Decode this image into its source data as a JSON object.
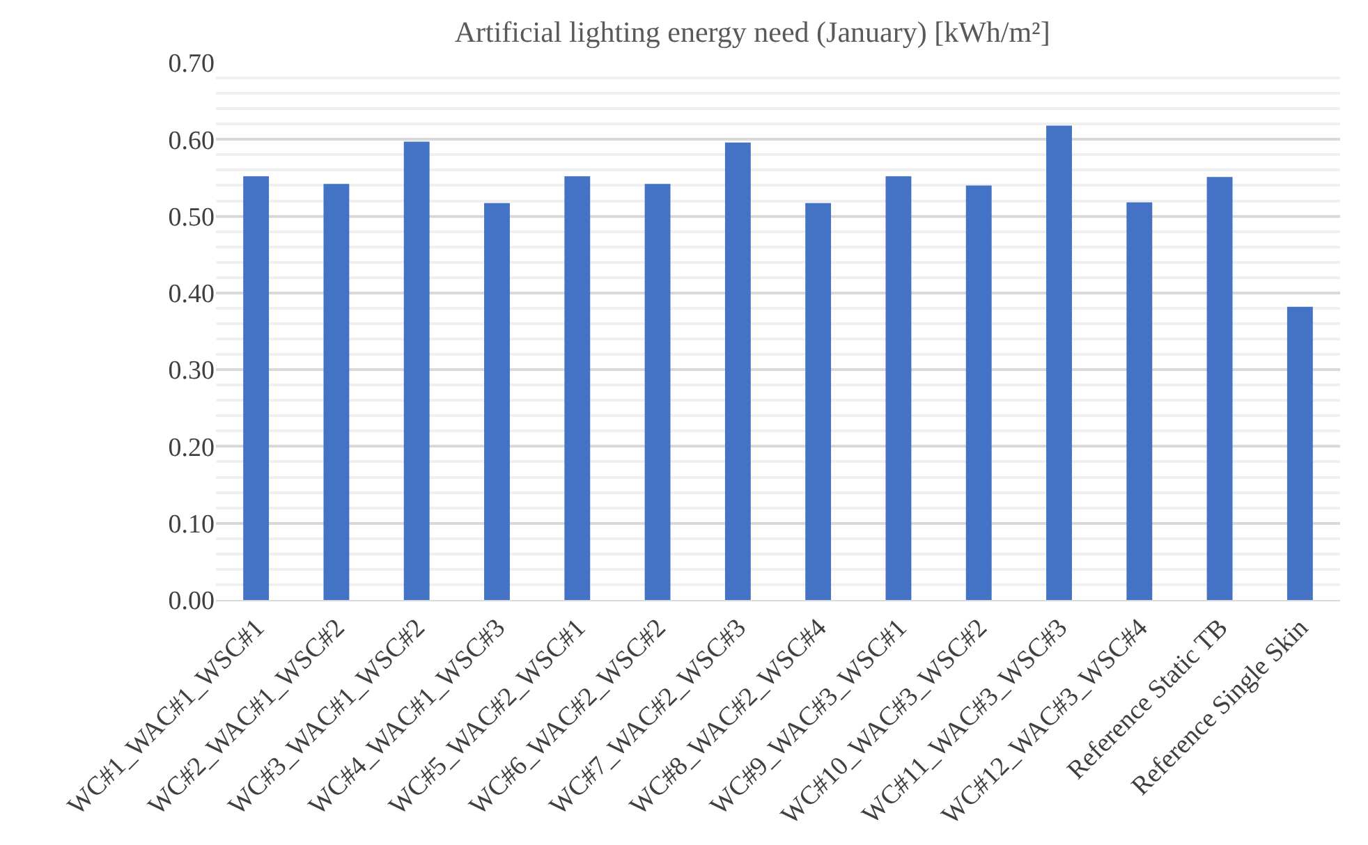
{
  "chart_data": {
    "type": "bar",
    "title": "Artificial lighting energy need (January) [kWh/m²]",
    "categories": [
      "WC#1_WAC#1_WSC#1",
      "WC#2_WAC#1_WSC#2",
      "WC#3_WAC#1_WSC#2",
      "WC#4_WAC#1_WSC#3",
      "WC#5_WAC#2_WSC#1",
      "WC#6_WAC#2_WSC#2",
      "WC#7_WAC#2_WSC#3",
      "WC#8_WAC#2_WSC#4",
      "WC#9_WAC#3_WSC#1",
      "WC#10_WAC#3_WSC#2",
      "WC#11_WAC#3_WSC#3",
      "WC#12_WAC#3_WSC#4",
      "Reference Static TB",
      "Reference Single Skin"
    ],
    "values": [
      0.552,
      0.542,
      0.597,
      0.517,
      0.552,
      0.542,
      0.596,
      0.517,
      0.552,
      0.54,
      0.618,
      0.518,
      0.551,
      0.382
    ],
    "color": "#4472c4",
    "ylim": [
      0,
      0.7
    ],
    "yticks": [
      {
        "value": 0,
        "label": "0.00"
      },
      {
        "value": 0.1,
        "label": "0.10"
      },
      {
        "value": 0.2,
        "label": "0.20"
      },
      {
        "value": 0.3,
        "label": "0.30"
      },
      {
        "value": 0.4,
        "label": "0.40"
      },
      {
        "value": 0.5,
        "label": "0.50"
      },
      {
        "value": 0.6,
        "label": "0.60"
      },
      {
        "value": 0.7,
        "label": "0.70"
      }
    ],
    "grid": "y"
  }
}
